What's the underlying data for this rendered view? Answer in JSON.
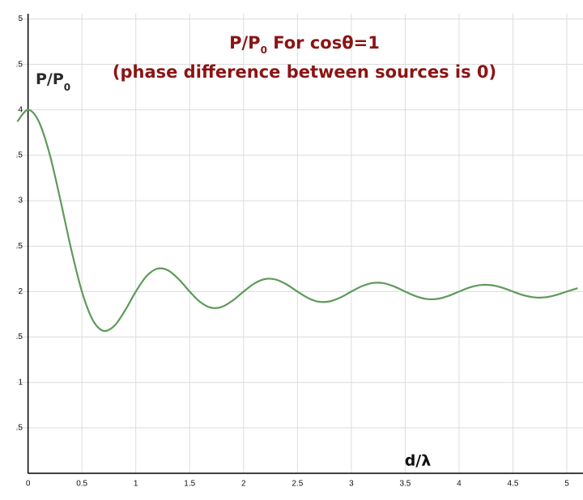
{
  "chart_data": {
    "type": "line",
    "title": {
      "main": "P/P",
      "sub": "0",
      "rest": " For cosθ=1"
    },
    "subtitle": "(phase difference between sources is 0)",
    "y_label": {
      "main": "P/P",
      "sub": "0"
    },
    "x_label": "d/λ",
    "x": [
      -0.1,
      0,
      0.1,
      0.2,
      0.3,
      0.4,
      0.5,
      0.6,
      0.7,
      0.8,
      0.9,
      1.0,
      1.1,
      1.2,
      1.3,
      1.4,
      1.5,
      1.6,
      1.7,
      1.8,
      1.9,
      2.0,
      2.1,
      2.2,
      2.3,
      2.4,
      2.5,
      2.6,
      2.7,
      2.8,
      2.9,
      3.0,
      3.1,
      3.2,
      3.3,
      3.4,
      3.5,
      3.6,
      3.7,
      3.8,
      3.9,
      4.0,
      4.1,
      4.2,
      4.3,
      4.4,
      4.5,
      4.6,
      4.7,
      4.8,
      4.9,
      5.0,
      5.1
    ],
    "series": [
      {
        "name": "P/P0",
        "color": "#5e9a5a",
        "values": [
          3.871,
          4,
          3.871,
          3.514,
          3.009,
          2.468,
          2,
          1.688,
          1.568,
          1.622,
          1.792,
          2,
          2.17,
          2.252,
          2.233,
          2.134,
          2,
          1.883,
          1.822,
          1.832,
          1.902,
          2,
          2.089,
          2.138,
          2.132,
          2.078,
          2,
          1.928,
          1.888,
          1.892,
          1.935,
          2,
          2.06,
          2.095,
          2.092,
          2.055,
          2,
          1.948,
          1.918,
          1.92,
          1.952,
          2,
          2.046,
          2.072,
          2.07,
          2.043,
          2,
          1.959,
          1.936,
          1.937,
          1.962,
          2,
          2.037
        ]
      }
    ],
    "xlim": [
      -0.11,
      5.15
    ],
    "ylim": [
      0,
      5.2
    ],
    "xticks": [
      0,
      0.5,
      1,
      1.5,
      2,
      2.5,
      3,
      3.5,
      4,
      4.5,
      5
    ],
    "yticks": [
      {
        "value": 0.5,
        "label": ".5"
      },
      1,
      {
        "value": 1.5,
        "label": ".5"
      },
      2,
      {
        "value": 2.5,
        "label": ".5"
      },
      3,
      {
        "value": 3.5,
        "label": ".5"
      },
      4,
      {
        "value": 4.5,
        "label": ".5"
      },
      5
    ],
    "grid": true
  }
}
